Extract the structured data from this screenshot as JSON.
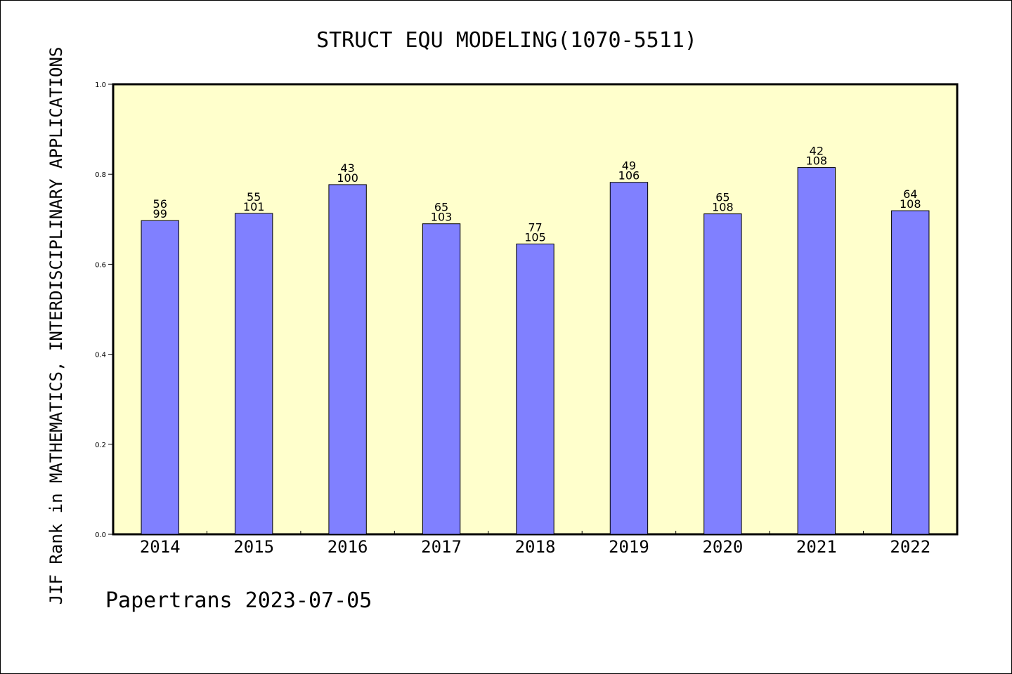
{
  "chart_data": {
    "type": "bar",
    "title": "STRUCT EQU MODELING(1070-5511)",
    "ylabel": "JIF Rank in MATHEMATICS,  INTERDISCIPLINARY APPLICATIONS",
    "xlabel": "",
    "footer": "Papertrans 2023-07-05",
    "categories": [
      "2014",
      "2015",
      "2016",
      "2017",
      "2018",
      "2019",
      "2020",
      "2021",
      "2022"
    ],
    "values": [
      0.697,
      0.713,
      0.777,
      0.69,
      0.645,
      0.782,
      0.712,
      0.815,
      0.719
    ],
    "rank_labels": [
      "56",
      "55",
      "43",
      "65",
      "77",
      "49",
      "65",
      "42",
      "64"
    ],
    "total_labels": [
      "99",
      "101",
      "100",
      "103",
      "105",
      "106",
      "108",
      "108",
      "108"
    ],
    "ylim": [
      0,
      1.0
    ],
    "yticks": [
      "0.0",
      "0.2",
      "0.4",
      "0.6",
      "0.8",
      "1.0"
    ],
    "plot_background": "#ffffcc",
    "bar_color": "#8080ff",
    "grid": false,
    "legend": "none"
  }
}
